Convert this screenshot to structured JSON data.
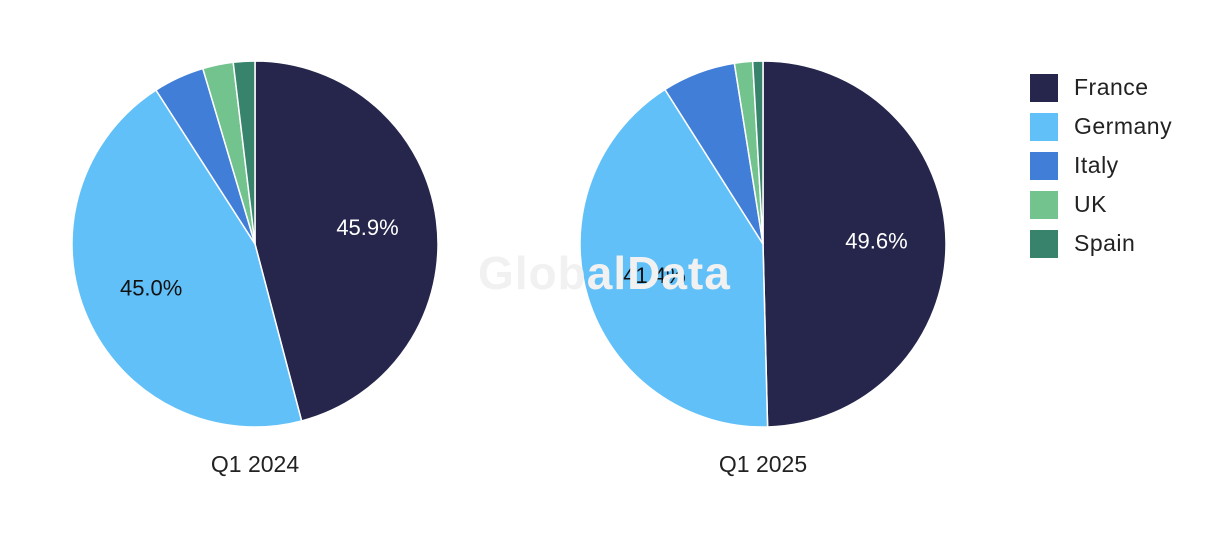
{
  "watermark": "GlobalData",
  "legend": [
    {
      "name": "France",
      "color": "#26264d"
    },
    {
      "name": "Germany",
      "color": "#62c0f8"
    },
    {
      "name": "Italy",
      "color": "#407ed8"
    },
    {
      "name": "UK",
      "color": "#72c38e"
    },
    {
      "name": "Spain",
      "color": "#37836b"
    }
  ],
  "chart_data": [
    {
      "type": "pie",
      "title": "Q1 2024",
      "slices": [
        {
          "name": "France",
          "value": 45.9,
          "label": "45.9%",
          "label_color": "#ffffff"
        },
        {
          "name": "Germany",
          "value": 45.0,
          "label": "45.0%",
          "label_color": "#111111"
        },
        {
          "name": "Italy",
          "value": 4.5,
          "label": ""
        },
        {
          "name": "UK",
          "value": 2.7,
          "label": ""
        },
        {
          "name": "Spain",
          "value": 1.9,
          "label": ""
        }
      ]
    },
    {
      "type": "pie",
      "title": "Q1 2025",
      "slices": [
        {
          "name": "France",
          "value": 49.6,
          "label": "49.6%",
          "label_color": "#ffffff"
        },
        {
          "name": "Germany",
          "value": 41.4,
          "label": "41.4%",
          "label_color": "#111111"
        },
        {
          "name": "Italy",
          "value": 6.5,
          "label": ""
        },
        {
          "name": "UK",
          "value": 1.6,
          "label": ""
        },
        {
          "name": "Spain",
          "value": 0.9,
          "label": ""
        }
      ]
    }
  ]
}
